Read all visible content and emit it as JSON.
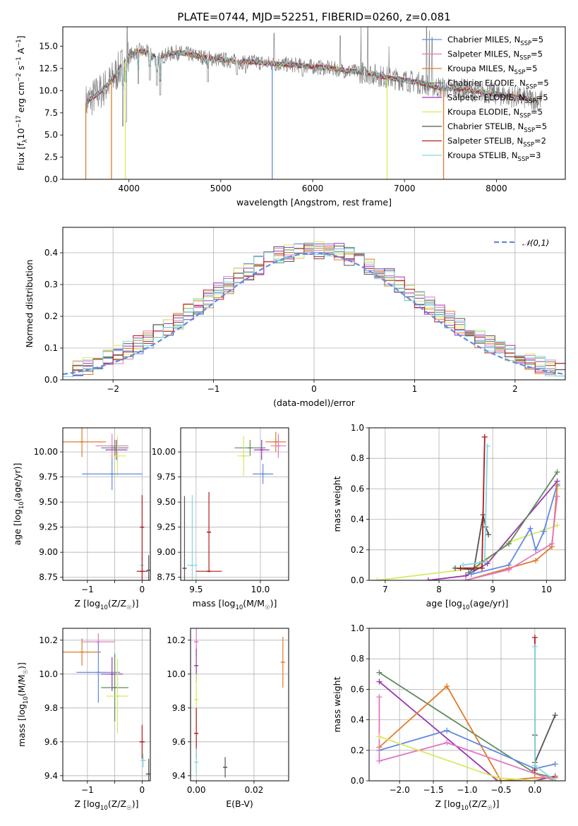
{
  "palette": {
    "blue": "#6389e2",
    "pink": "#e377c2",
    "orange": "#e07b2a",
    "green": "#5f8a5f",
    "purple": "#9b36b0",
    "lime": "#d7e95f",
    "dark": "#555555",
    "red": "#b31b1b",
    "cyan": "#82d8e0",
    "spectrum": "#808080"
  },
  "figure_title": "PLATE=0744, MJD=52251, FIBERID=0260, z=0.081",
  "chart_data": [
    {
      "id": "spectrum",
      "type": "line",
      "xlabel": "wavelength [Angstrom, rest frame]",
      "ylabel": "Flux [f",
      "ylabel_sub": "λ",
      "ylabel_rest": "10",
      "ylabel_sup": "−17",
      "ylabel_tail": " erg cm",
      "ylabel_sup2": "−2",
      "ylabel_tail2": " s",
      "ylabel_sup3": "−1",
      "ylabel_tail3": " A",
      "ylabel_sup4": "−1",
      "ylabel_end": "]",
      "xlim": [
        3280,
        8750
      ],
      "ylim": [
        0,
        17.2
      ],
      "xticks": [
        4000,
        5000,
        6000,
        7000,
        8000
      ],
      "yticks": [
        0.0,
        2.5,
        5.0,
        7.5,
        10.0,
        12.5,
        15.0
      ],
      "legend_position": "upper right",
      "legend": [
        {
          "label": "Chabrier MILES, N",
          "sub": "SSP",
          "tail": "=5",
          "color": "blue"
        },
        {
          "label": "Salpeter MILES, N",
          "sub": "SSP",
          "tail": "=5",
          "color": "pink"
        },
        {
          "label": "Kroupa MILES, N",
          "sub": "SSP",
          "tail": "=5",
          "color": "orange"
        },
        {
          "label": "Chabrier ELODIE, N",
          "sub": "SSP",
          "tail": "=5",
          "color": "green"
        },
        {
          "label": "Salpeter ELODIE, N",
          "sub": "SSP",
          "tail": "=5",
          "color": "purple"
        },
        {
          "label": "Kroupa ELODIE, N",
          "sub": "SSP",
          "tail": "=5",
          "color": "lime"
        },
        {
          "label": "Chabrier STELIB, N",
          "sub": "SSP",
          "tail": "=5",
          "color": "dark"
        },
        {
          "label": "Salpeter STELIB, N",
          "sub": "SSP",
          "tail": "=2",
          "color": "red"
        },
        {
          "label": "Kroupa STELIB, N",
          "sub": "SSP",
          "tail": "=3",
          "color": "cyan"
        }
      ],
      "continuum": [
        [
          3530,
          8.6
        ],
        [
          3600,
          9.2
        ],
        [
          3700,
          10.0
        ],
        [
          3800,
          11.0
        ],
        [
          3900,
          12.5
        ],
        [
          4000,
          13.9
        ],
        [
          4100,
          14.5
        ],
        [
          4200,
          14.3
        ],
        [
          4300,
          13.6
        ],
        [
          4400,
          14.0
        ],
        [
          4500,
          14.3
        ],
        [
          4600,
          14.2
        ],
        [
          4700,
          14.0
        ],
        [
          4800,
          13.8
        ],
        [
          4900,
          13.6
        ],
        [
          5000,
          13.5
        ],
        [
          5100,
          13.4
        ],
        [
          5200,
          13.2
        ],
        [
          5300,
          13.3
        ],
        [
          5400,
          13.2
        ],
        [
          5500,
          13.1
        ],
        [
          5600,
          13.0
        ],
        [
          5800,
          12.9
        ],
        [
          6000,
          12.7
        ],
        [
          6200,
          12.5
        ],
        [
          6400,
          12.2
        ],
        [
          6600,
          12.0
        ],
        [
          6800,
          11.5
        ],
        [
          7000,
          11.2
        ],
        [
          7200,
          10.8
        ],
        [
          7400,
          10.3
        ],
        [
          7600,
          10.2
        ],
        [
          7800,
          9.9
        ],
        [
          8000,
          9.6
        ],
        [
          8200,
          9.3
        ],
        [
          8400,
          9.0
        ],
        [
          8500,
          8.9
        ]
      ],
      "absorption_lines": [
        [
          3934,
          6.0
        ],
        [
          3969,
          6.5
        ],
        [
          4102,
          10.8
        ],
        [
          4227,
          11.2
        ],
        [
          4304,
          10.6
        ],
        [
          4340,
          9.5
        ],
        [
          4861,
          11.0
        ],
        [
          5175,
          11.8
        ],
        [
          5270,
          12.0
        ],
        [
          5890,
          11.6
        ],
        [
          6563,
          11.2
        ]
      ],
      "spikes": [
        [
          3980,
          17.2
        ],
        [
          5580,
          16.5
        ],
        [
          6300,
          16.2
        ],
        [
          6525,
          17.2
        ],
        [
          6600,
          17.2
        ],
        [
          6830,
          15.0
        ],
        [
          7240,
          17.2
        ],
        [
          7270,
          16.8
        ],
        [
          7300,
          16.0
        ]
      ],
      "model_drops": [
        [
          3530,
          "orange"
        ],
        [
          3810,
          "orange"
        ],
        [
          3960,
          "lime"
        ],
        [
          5560,
          "blue"
        ],
        [
          6810,
          "lime"
        ],
        [
          7425,
          "orange"
        ]
      ]
    },
    {
      "id": "residuals",
      "type": "histogram",
      "xlabel": "(data-model)/error",
      "ylabel": "Normed distribution",
      "xlim": [
        -2.5,
        2.5
      ],
      "ylim": [
        0,
        0.48
      ],
      "xticks": [
        -2,
        -1,
        0,
        1,
        2
      ],
      "yticks": [
        0.0,
        0.1,
        0.2,
        0.3,
        0.4
      ],
      "legend": [
        {
          "label": "𝒩(0,1)",
          "color": "blue",
          "style": "dashed"
        }
      ],
      "legend_position": "upper right",
      "bin_width": 0.1
    },
    {
      "id": "age-vs-Z",
      "type": "errorbar",
      "xlabel": "Z [log",
      "xlabel_sub": "10",
      "xlabel_tail": "(Z/Z",
      "xlabel_sub2": "☉",
      "xlabel_end": ")]",
      "ylabel": "age  [log",
      "ylabel_sub": "10",
      "ylabel_tail": "(age/yr)]",
      "xlim": [
        -1.45,
        0.15
      ],
      "ylim": [
        8.72,
        10.24
      ],
      "xticks": [
        -1,
        -0.5,
        0
      ],
      "xticklabels": [
        "−1",
        "",
        "0"
      ],
      "yticks": [
        8.75,
        9.0,
        9.25,
        9.5,
        9.75,
        10.0
      ],
      "points": [
        {
          "model": "orange",
          "x": -1.1,
          "xerr": 0.44,
          "y": 10.1,
          "yerr": 0.15
        },
        {
          "model": "pink",
          "x": -0.55,
          "xerr": 0.3,
          "y": 10.06,
          "yerr": 0.12
        },
        {
          "model": "purple",
          "x": -0.47,
          "xerr": 0.2,
          "y": 10.02,
          "yerr": 0.1
        },
        {
          "model": "green",
          "x": -0.5,
          "xerr": 0.25,
          "y": 10.04,
          "yerr": 0.08
        },
        {
          "model": "lime",
          "x": -0.45,
          "xerr": 0.15,
          "y": 9.96,
          "yerr": 0.2
        },
        {
          "model": "blue",
          "x": -0.55,
          "xerr": 0.55,
          "y": 9.78,
          "yerr": 0.16
        },
        {
          "model": "cyan",
          "x": 0.0,
          "xerr": 0.02,
          "y": 8.87,
          "yerr": 0.15
        },
        {
          "model": "dark",
          "x": 0.12,
          "xerr": 0.0,
          "y": 8.82,
          "yerr": 0.15
        },
        {
          "model": "red",
          "x": 0.0,
          "xerr": 0.1,
          "y": 8.81,
          "yerr": 0.13
        },
        {
          "model": "red",
          "x": 0.0,
          "xerr": 0.0,
          "y": 9.25,
          "yerr": 0.32
        }
      ]
    },
    {
      "id": "age-vs-mass",
      "type": "errorbar",
      "xlabel": "mass [log",
      "xlabel_sub": "10",
      "xlabel_tail": "(M/M",
      "xlabel_sub2": "☉",
      "xlabel_end": ")]",
      "xlim": [
        9.38,
        10.22
      ],
      "ylim": [
        8.72,
        10.24
      ],
      "xticks": [
        9.5,
        10.0
      ],
      "xticklabels": [
        "9.5",
        "10.0"
      ],
      "yticks": [
        8.75,
        9.0,
        9.25,
        9.5,
        9.75,
        10.0
      ],
      "points": [
        {
          "model": "orange",
          "x": 10.12,
          "xerr": 0.08,
          "y": 10.1,
          "yerr": 0.1
        },
        {
          "model": "pink",
          "x": 10.14,
          "xerr": 0.06,
          "y": 10.06,
          "yerr": 0.12
        },
        {
          "model": "green",
          "x": 9.92,
          "xerr": 0.12,
          "y": 10.04,
          "yerr": 0.08
        },
        {
          "model": "purple",
          "x": 10.01,
          "xerr": 0.06,
          "y": 10.02,
          "yerr": 0.1
        },
        {
          "model": "lime",
          "x": 9.87,
          "xerr": 0.05,
          "y": 9.96,
          "yerr": 0.2
        },
        {
          "model": "blue",
          "x": 10.02,
          "xerr": 0.08,
          "y": 9.78,
          "yerr": 0.1
        },
        {
          "model": "cyan",
          "x": 9.47,
          "xerr": 0.04,
          "y": 8.87,
          "yerr": 0.7
        },
        {
          "model": "dark",
          "x": 9.41,
          "xerr": 0.01,
          "y": 8.84,
          "yerr": 0.72
        },
        {
          "model": "red",
          "x": 9.6,
          "xerr": 0.1,
          "y": 8.81,
          "yerr": 0.0
        },
        {
          "model": "red",
          "x": 9.6,
          "xerr": 0.0,
          "y": 9.2,
          "yerr": 0.4
        }
      ]
    },
    {
      "id": "mass-weight-vs-age",
      "type": "line",
      "xlabel": "age  [log",
      "xlabel_sub": "10",
      "xlabel_tail": "(age/yr)]",
      "ylabel": "mass weight",
      "xlim": [
        6.7,
        10.35
      ],
      "ylim": [
        0,
        1.0
      ],
      "xticks": [
        7,
        8,
        9,
        10
      ],
      "yticks": [
        0.0,
        0.2,
        0.4,
        0.6,
        0.8,
        1.0
      ],
      "series": [
        {
          "color": "lime",
          "x": [
            6.85,
            8.7,
            9.3,
            10.2
          ],
          "y": [
            0.0,
            0.08,
            0.25,
            0.36
          ]
        },
        {
          "color": "purple",
          "x": [
            7.8,
            8.5,
            8.9,
            10.2
          ],
          "y": [
            0.0,
            0.03,
            0.11,
            0.65
          ]
        },
        {
          "color": "green",
          "x": [
            8.55,
            8.8,
            9.3,
            10.2
          ],
          "y": [
            0.05,
            0.12,
            0.24,
            0.71
          ]
        },
        {
          "color": "blue",
          "x": [
            8.6,
            9.3,
            9.7,
            9.8,
            9.95,
            10.2
          ],
          "y": [
            0.04,
            0.1,
            0.34,
            0.2,
            0.32,
            0.63
          ]
        },
        {
          "color": "orange",
          "x": [
            8.5,
            9.3,
            9.8,
            10.1,
            10.2
          ],
          "y": [
            0.0,
            0.08,
            0.13,
            0.22,
            0.62
          ]
        },
        {
          "color": "pink",
          "x": [
            8.5,
            9.3,
            10.1,
            10.2
          ],
          "y": [
            0.0,
            0.07,
            0.24,
            0.55
          ]
        },
        {
          "color": "dark",
          "x": [
            8.3,
            8.65,
            8.82,
            8.87,
            8.92
          ],
          "y": [
            0.08,
            0.07,
            0.43,
            0.35,
            0.3
          ]
        },
        {
          "color": "red",
          "x": [
            8.4,
            8.8,
            8.85
          ],
          "y": [
            0.08,
            0.08,
            0.94
          ]
        },
        {
          "color": "cyan",
          "x": [
            8.45,
            8.85,
            8.9
          ],
          "y": [
            0.1,
            0.12,
            0.88
          ]
        }
      ]
    },
    {
      "id": "mass-vs-Z",
      "type": "errorbar",
      "xlabel": "Z [log",
      "xlabel_sub": "10",
      "xlabel_tail": "(Z/Z",
      "xlabel_sub2": "☉",
      "xlabel_end": ")]",
      "ylabel": "mass [log",
      "ylabel_sub": "10",
      "ylabel_tail": "(M/M",
      "ylabel_sub2": "☉",
      "ylabel_end": ")]",
      "xlim": [
        -1.45,
        0.15
      ],
      "ylim": [
        9.37,
        10.27
      ],
      "xticks": [
        -1,
        -0.5,
        0
      ],
      "xticklabels": [
        "−1",
        "",
        "0"
      ],
      "yticks": [
        9.4,
        9.6,
        9.8,
        10.0,
        10.2
      ],
      "points": [
        {
          "model": "pink",
          "x": -0.8,
          "xerr": 0.3,
          "y": 10.19,
          "yerr": 0.05
        },
        {
          "model": "orange",
          "x": -1.1,
          "xerr": 0.35,
          "y": 10.13,
          "yerr": 0.08
        },
        {
          "model": "blue",
          "x": -0.8,
          "xerr": 0.4,
          "y": 10.01,
          "yerr": 0.18
        },
        {
          "model": "purple",
          "x": -0.55,
          "xerr": 0.2,
          "y": 10.0,
          "yerr": 0.1
        },
        {
          "model": "green",
          "x": -0.5,
          "xerr": 0.25,
          "y": 9.92,
          "yerr": 0.2
        },
        {
          "model": "lime",
          "x": -0.45,
          "xerr": 0.2,
          "y": 9.87,
          "yerr": 0.22
        },
        {
          "model": "red",
          "x": 0.0,
          "xerr": 0.05,
          "y": 9.6,
          "yerr": 0.1
        },
        {
          "model": "cyan",
          "x": 0.02,
          "xerr": 0.05,
          "y": 9.49,
          "yerr": 0.04
        },
        {
          "model": "dark",
          "x": 0.12,
          "xerr": 0.05,
          "y": 9.41,
          "yerr": 0.09
        }
      ]
    },
    {
      "id": "mass-vs-EBV",
      "type": "errorbar",
      "xlabel": "E(B-V)",
      "xlim": [
        -0.002,
        0.032
      ],
      "ylim": [
        9.37,
        10.27
      ],
      "xticks": [
        0.0,
        0.02
      ],
      "xticklabels": [
        "0.00",
        "0.02"
      ],
      "yticks": [
        9.4,
        9.6,
        9.8,
        10.0,
        10.2
      ],
      "points": [
        {
          "model": "pink",
          "x": 0.0,
          "xerr": 0.0,
          "y": 10.19,
          "yerr": 0.08
        },
        {
          "model": "purple",
          "x": 0.0,
          "xerr": 0.0,
          "y": 10.05,
          "yerr": 0.1
        },
        {
          "model": "lime",
          "x": 0.0,
          "xerr": 0.0,
          "y": 9.85,
          "yerr": 0.15
        },
        {
          "model": "red",
          "x": 0.0,
          "xerr": 0.0,
          "y": 9.65,
          "yerr": 0.15
        },
        {
          "model": "cyan",
          "x": 0.0,
          "xerr": 0.0,
          "y": 9.48,
          "yerr": 0.08
        },
        {
          "model": "dark",
          "x": 0.01,
          "xerr": 0.0,
          "y": 9.45,
          "yerr": 0.06
        },
        {
          "model": "orange",
          "x": 0.03,
          "xerr": 0.0,
          "y": 10.07,
          "yerr": 0.15
        }
      ]
    },
    {
      "id": "mass-weight-vs-Z",
      "type": "line",
      "xlabel": "Z [log",
      "xlabel_sub": "10",
      "xlabel_tail": "(Z/Z",
      "xlabel_sub2": "☉",
      "xlabel_end": ")]",
      "ylabel": "mass weight",
      "xlim": [
        -2.45,
        0.45
      ],
      "ylim": [
        0,
        1.0
      ],
      "xticks": [
        -2.0,
        -1.5,
        -1.0,
        -0.5,
        0.0
      ],
      "xticklabels": [
        "−2.0",
        "−1.5",
        "−1.0",
        "−0.5",
        "0.0"
      ],
      "yticks": [
        0.0,
        0.2,
        0.4,
        0.6,
        0.8,
        1.0
      ],
      "series": [
        {
          "color": "green",
          "x": [
            -2.3,
            0.0,
            0.3
          ],
          "y": [
            0.71,
            0.05,
            0.02
          ]
        },
        {
          "color": "purple",
          "x": [
            -2.3,
            -0.55,
            0.0,
            0.3
          ],
          "y": [
            0.65,
            0.0,
            0.0,
            0.03
          ]
        },
        {
          "color": "orange",
          "x": [
            -2.3,
            -1.3,
            -0.5,
            0.0,
            0.3
          ],
          "y": [
            0.22,
            0.62,
            0.0,
            0.02,
            0.02
          ]
        },
        {
          "color": "blue",
          "x": [
            -2.3,
            -1.3,
            0.0,
            0.3
          ],
          "y": [
            0.2,
            0.33,
            0.08,
            0.11
          ]
        },
        {
          "color": "pink",
          "x": [
            -2.3,
            -2.3,
            -1.3,
            0.3
          ],
          "y": [
            0.55,
            0.13,
            0.25,
            0.0
          ]
        },
        {
          "color": "lime",
          "x": [
            -2.3,
            -0.55,
            0.0,
            0.3
          ],
          "y": [
            0.29,
            0.02,
            0.0,
            0.0
          ]
        },
        {
          "color": "dark",
          "x": [
            0.0,
            0.0,
            0.3
          ],
          "y": [
            0.3,
            0.12,
            0.43
          ]
        },
        {
          "color": "red",
          "x": [
            0.0,
            0.0
          ],
          "y": [
            0.94,
            0.07
          ]
        },
        {
          "color": "cyan",
          "x": [
            0.0,
            0.0,
            0.3
          ],
          "y": [
            0.88,
            0.1,
            0.0
          ]
        }
      ]
    }
  ]
}
